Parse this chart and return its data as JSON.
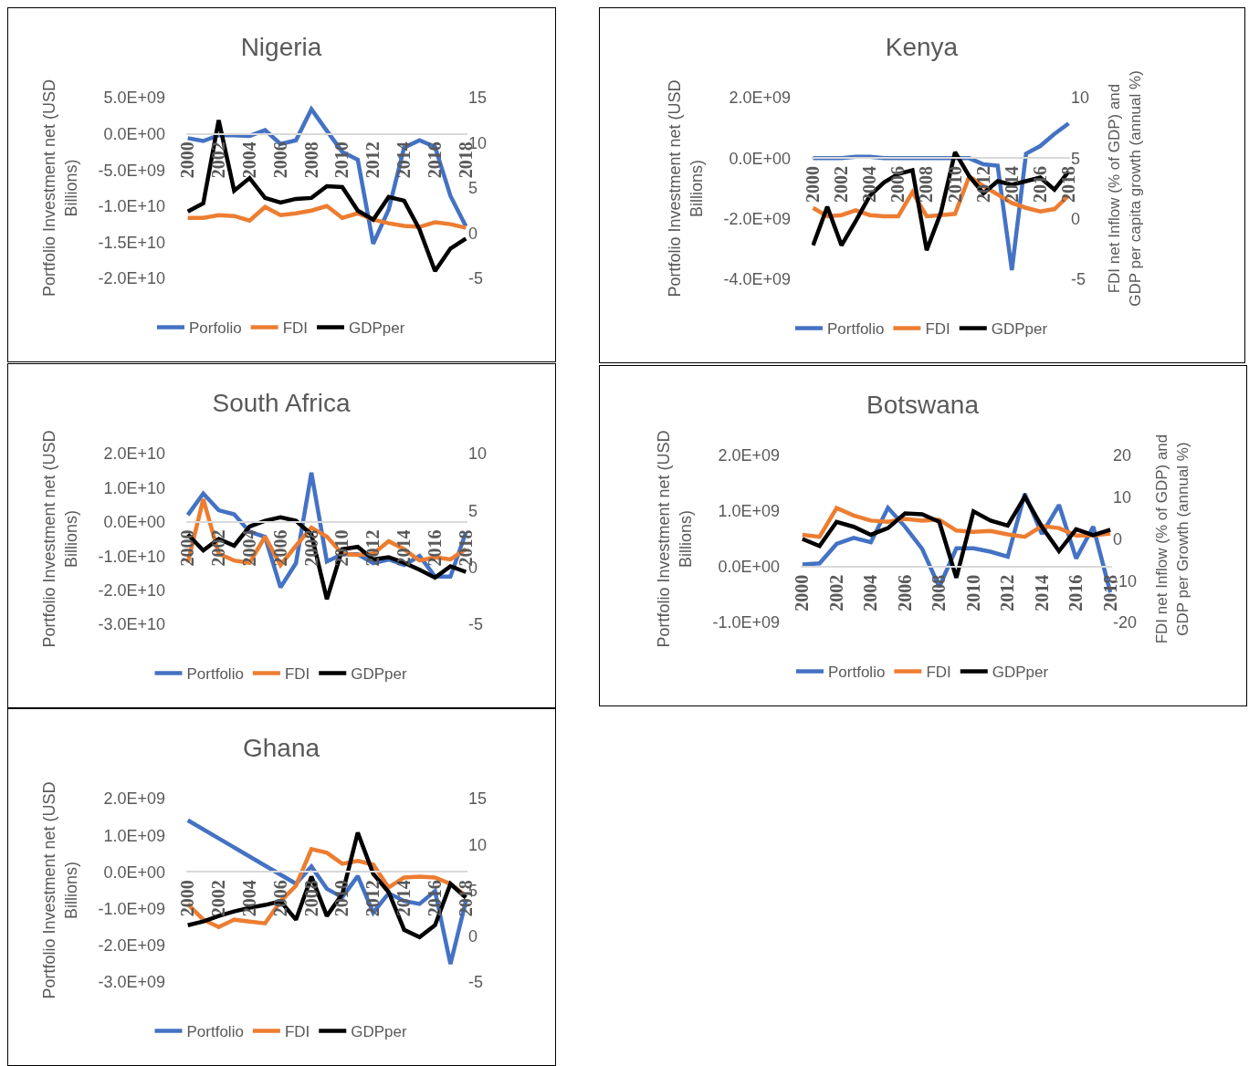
{
  "chart_data": [
    {
      "type": "line",
      "title": "Nigeria",
      "ylabel": "Portfolio Investment net (USD Billions)",
      "categories": [
        "2000",
        null,
        "2002",
        null,
        "2004",
        null,
        "2006",
        null,
        "2008",
        null,
        "2010",
        null,
        "2012",
        null,
        "2014",
        null,
        "2016",
        null,
        "2018"
      ],
      "series": [
        {
          "name": "Porfolio",
          "color": "#4472c4",
          "values": [
            -600000000.0,
            -1000000000.0,
            -200000000.0,
            -200000000.0,
            -300000000.0,
            500000000.0,
            -1400000000.0,
            -900000000.0,
            3400000000.0,
            400000000.0,
            -2500000000.0,
            -3600000000.0,
            -15200000000.0,
            -10500000000.0,
            -1900000000.0,
            -900000000.0,
            -1800000000.0,
            -8600000000.0,
            -12800000000.0
          ]
        },
        {
          "name": "FDI",
          "color": "#ed7d31",
          "axis": "y2",
          "values": [
            1.7,
            1.7,
            2.0,
            1.9,
            1.4,
            2.9,
            2.0,
            2.2,
            2.5,
            3.0,
            1.7,
            2.2,
            1.5,
            1.1,
            0.8,
            0.7,
            1.2,
            1.0,
            0.6
          ]
        },
        {
          "name": "GDPper",
          "color": "#000000",
          "axis": "y2",
          "values": [
            2.4,
            3.3,
            12.5,
            4.7,
            6.1,
            3.9,
            3.4,
            3.8,
            3.9,
            5.2,
            5.1,
            2.5,
            1.5,
            4.0,
            3.6,
            0.4,
            -4.2,
            -1.7,
            -0.6
          ]
        }
      ],
      "ylim": [
        -20000000000.0,
        5000000000.0
      ],
      "yticks": [
        {
          "value": 5000000000.0,
          "label": "5.0E+09"
        },
        {
          "value": 0,
          "label": "0.0E+00"
        },
        {
          "value": -5000000000.0,
          "label": "-5.0E+09"
        },
        {
          "value": -10000000000.0,
          "label": "-1.0E+10"
        },
        {
          "value": -15000000000.0,
          "label": "-1.5E+10"
        },
        {
          "value": -20000000000.0,
          "label": "-2.0E+10"
        }
      ],
      "y2lim": [
        -5,
        15
      ],
      "y2ticks": [
        15,
        10,
        5,
        0,
        -5
      ],
      "legend": "bottom"
    },
    {
      "type": "line",
      "title": "Kenya",
      "ylabel": "Portfolio Investment net (USD Billions)",
      "y2label": "FDI net Inflow (% of GDP) and GDP per capita growth (annual %)",
      "categories": [
        "2000",
        null,
        "2002",
        null,
        "2004",
        null,
        "2006",
        null,
        "2008",
        null,
        "2010",
        null,
        "2012",
        null,
        "2014",
        null,
        "2016",
        null,
        "2018"
      ],
      "series": [
        {
          "name": "Portfolio",
          "color": "#4472c4",
          "values": [
            0,
            0,
            0,
            50000000.0,
            50000000.0,
            0,
            0,
            0,
            0,
            0,
            0,
            0,
            -200000000.0,
            -250000000.0,
            -3700000000.0,
            150000000.0,
            400000000.0,
            800000000.0,
            1150000000.0
          ]
        },
        {
          "name": "FDI",
          "color": "#ed7d31",
          "axis": "y2",
          "values": [
            0.9,
            0.2,
            0.3,
            0.7,
            0.3,
            0.2,
            0.2,
            2.2,
            0.2,
            0.3,
            0.4,
            3.5,
            2.7,
            2.0,
            1.3,
            0.9,
            0.6,
            0.8,
            1.9
          ]
        },
        {
          "name": "GDPper",
          "color": "#000000",
          "axis": "y2",
          "values": [
            -2.2,
            1.0,
            -2.2,
            -0.2,
            1.9,
            3.0,
            3.7,
            4.0,
            -2.6,
            0.5,
            5.5,
            3.5,
            2.1,
            3.1,
            2.8,
            3.1,
            3.4,
            2.4,
            3.9
          ]
        }
      ],
      "ylim": [
        -4000000000.0,
        2000000000.0
      ],
      "yticks": [
        {
          "value": 2000000000.0,
          "label": "2.0E+09"
        },
        {
          "value": 0,
          "label": "0.0E+00"
        },
        {
          "value": -2000000000.0,
          "label": "-2.0E+09"
        },
        {
          "value": -4000000000.0,
          "label": "-4.0E+09"
        }
      ],
      "y2lim": [
        -5,
        10
      ],
      "y2ticks": [
        10,
        5,
        0,
        -5
      ],
      "legend": "bottom"
    },
    {
      "type": "line",
      "title": "South Africa",
      "ylabel": "Portfolio Investment net (USD Billions)",
      "categories": [
        "2000",
        null,
        "2002",
        null,
        "2004",
        null,
        "2006",
        null,
        "2008",
        null,
        "2010",
        null,
        "2012",
        null,
        "2014",
        null,
        "2016",
        null,
        "2018"
      ],
      "series": [
        {
          "name": "Portfolio",
          "color": "#4472c4",
          "values": [
            2000000000.0,
            8300000000.0,
            3400000000.0,
            2200000000.0,
            -2900000000.0,
            -4400000000.0,
            -19200000000.0,
            -12100000000.0,
            14400000000.0,
            -11600000000.0,
            -9500000000.0,
            -9500000000.0,
            -12100000000.0,
            -11000000000.0,
            -12600000000.0,
            -10000000000.0,
            -16000000000.0,
            -16000000000.0,
            -3100000000.0
          ]
        },
        {
          "name": "FDI",
          "color": "#ed7d31",
          "axis": "y2",
          "values": [
            0.4,
            6.0,
            1.2,
            0.6,
            0.4,
            2.7,
            0.2,
            1.9,
            3.5,
            2.7,
            1.2,
            1.1,
            1.2,
            2.3,
            1.6,
            0.6,
            0.9,
            0.7,
            1.6
          ]
        },
        {
          "name": "GDPper",
          "color": "#000000",
          "axis": "y2",
          "values": [
            2.9,
            1.5,
            2.5,
            1.9,
            3.6,
            4.1,
            4.4,
            4.1,
            2.9,
            -2.8,
            1.6,
            1.8,
            0.7,
            0.9,
            0.4,
            -0.2,
            -0.9,
            0.1,
            -0.4
          ]
        }
      ],
      "ylim": [
        -30000000000.0,
        20000000000.0
      ],
      "yticks": [
        {
          "value": 20000000000.0,
          "label": "2.0E+10"
        },
        {
          "value": 10000000000.0,
          "label": "1.0E+10"
        },
        {
          "value": 0,
          "label": "0.0E+00"
        },
        {
          "value": -10000000000.0,
          "label": "-1.0E+10"
        },
        {
          "value": -20000000000.0,
          "label": "-2.0E+10"
        },
        {
          "value": -30000000000.0,
          "label": "-3.0E+10"
        }
      ],
      "y2lim": [
        -5,
        10
      ],
      "y2ticks": [
        10,
        5,
        0,
        -5
      ],
      "legend": "bottom"
    },
    {
      "type": "line",
      "title": "Botswana",
      "ylabel": "Portfolio Investment net (USD Billions)",
      "y2label": "FDI net Inflow (% of GDP) and GDP per Growth (annual %)",
      "categories": [
        "2000",
        null,
        "2002",
        null,
        "2004",
        null,
        "2006",
        null,
        "2008",
        null,
        "2010",
        null,
        "2012",
        null,
        "2014",
        null,
        "2016",
        null,
        "2018"
      ],
      "series": [
        {
          "name": "Portfolio",
          "color": "#4472c4",
          "values": [
            40000000.0,
            60000000.0,
            410000000.0,
            520000000.0,
            440000000.0,
            1060000000.0,
            720000000.0,
            320000000.0,
            -360000000.0,
            330000000.0,
            330000000.0,
            270000000.0,
            180000000.0,
            1310000000.0,
            590000000.0,
            1110000000.0,
            150000000.0,
            720000000.0,
            -460000000.0
          ]
        },
        {
          "name": "FDI",
          "color": "#ed7d31",
          "axis": "y2",
          "values": [
            1.0,
            0.5,
            7.4,
            5.6,
            4.4,
            4.1,
            4.8,
            4.4,
            4.6,
            2.0,
            1.7,
            1.9,
            1.1,
            0.5,
            3.1,
            2.6,
            0.8,
            0.8,
            1.3
          ]
        },
        {
          "name": "GDPper",
          "color": "#000000",
          "axis": "y2",
          "values": [
            0,
            -1.7,
            4.1,
            2.9,
            1.0,
            2.6,
            6.1,
            5.9,
            4.1,
            -9.3,
            6.6,
            4.4,
            3.2,
            10.1,
            2.9,
            -2.9,
            2.3,
            0.9,
            2.2
          ]
        }
      ],
      "ylim": [
        -1000000000.0,
        2000000000.0
      ],
      "yticks": [
        {
          "value": 2000000000.0,
          "label": "2.0E+09"
        },
        {
          "value": 1000000000.0,
          "label": "1.0E+09"
        },
        {
          "value": 0,
          "label": "0.0E+00"
        },
        {
          "value": -1000000000.0,
          "label": "-1.0E+09"
        }
      ],
      "y2lim": [
        -20,
        20
      ],
      "y2ticks": [
        20,
        10,
        0,
        -10,
        -20
      ],
      "legend": "bottom"
    },
    {
      "type": "line",
      "title": "Ghana",
      "ylabel": "Portfolio Investment net (USD Billions)",
      "categories": [
        "2000",
        null,
        "2002",
        null,
        "2004",
        null,
        "2006",
        null,
        "2008",
        null,
        "2010",
        null,
        "2012",
        null,
        "2014",
        null,
        "2016",
        null,
        "2018"
      ],
      "series": [
        {
          "name": "Portfolio",
          "color": "#4472c4",
          "values": [
            1410000000.0,
            null,
            null,
            null,
            null,
            null,
            null,
            -320000000.0,
            150000000.0,
            -460000000.0,
            -690000000.0,
            -110000000.0,
            -1110000000.0,
            -580000000.0,
            -790000000.0,
            -870000000.0,
            -520000000.0,
            -2510000000.0,
            -790000000.0
          ]
        },
        {
          "name": "FDI",
          "color": "#ed7d31",
          "axis": "y2",
          "values": [
            3.5,
            1.8,
            1.0,
            1.8,
            1.6,
            1.4,
            3.8,
            5.5,
            9.5,
            9.1,
            7.9,
            8.2,
            7.8,
            5.3,
            6.4,
            6.5,
            6.4,
            5.7,
            4.4
          ]
        },
        {
          "name": "GDPper",
          "color": "#000000",
          "axis": "y2",
          "values": [
            1.2,
            1.6,
            2.2,
            2.7,
            3.1,
            3.4,
            3.8,
            1.8,
            6.5,
            2.2,
            4.6,
            11.3,
            6.8,
            4.8,
            0.7,
            -0.1,
            1.2,
            5.7,
            4.2
          ]
        }
      ],
      "ylim": [
        -3000000000.0,
        2000000000.0
      ],
      "yticks": [
        {
          "value": 2000000000.0,
          "label": "2.0E+09"
        },
        {
          "value": 1000000000.0,
          "label": "1.0E+09"
        },
        {
          "value": 0,
          "label": "0.0E+00"
        },
        {
          "value": -1000000000.0,
          "label": "-1.0E+09"
        },
        {
          "value": -2000000000.0,
          "label": "-2.0E+09"
        },
        {
          "value": -3000000000.0,
          "label": "-3.0E+09"
        }
      ],
      "y2lim": [
        -5,
        15
      ],
      "y2ticks": [
        15,
        10,
        5,
        0,
        -5
      ],
      "legend": "bottom"
    }
  ]
}
